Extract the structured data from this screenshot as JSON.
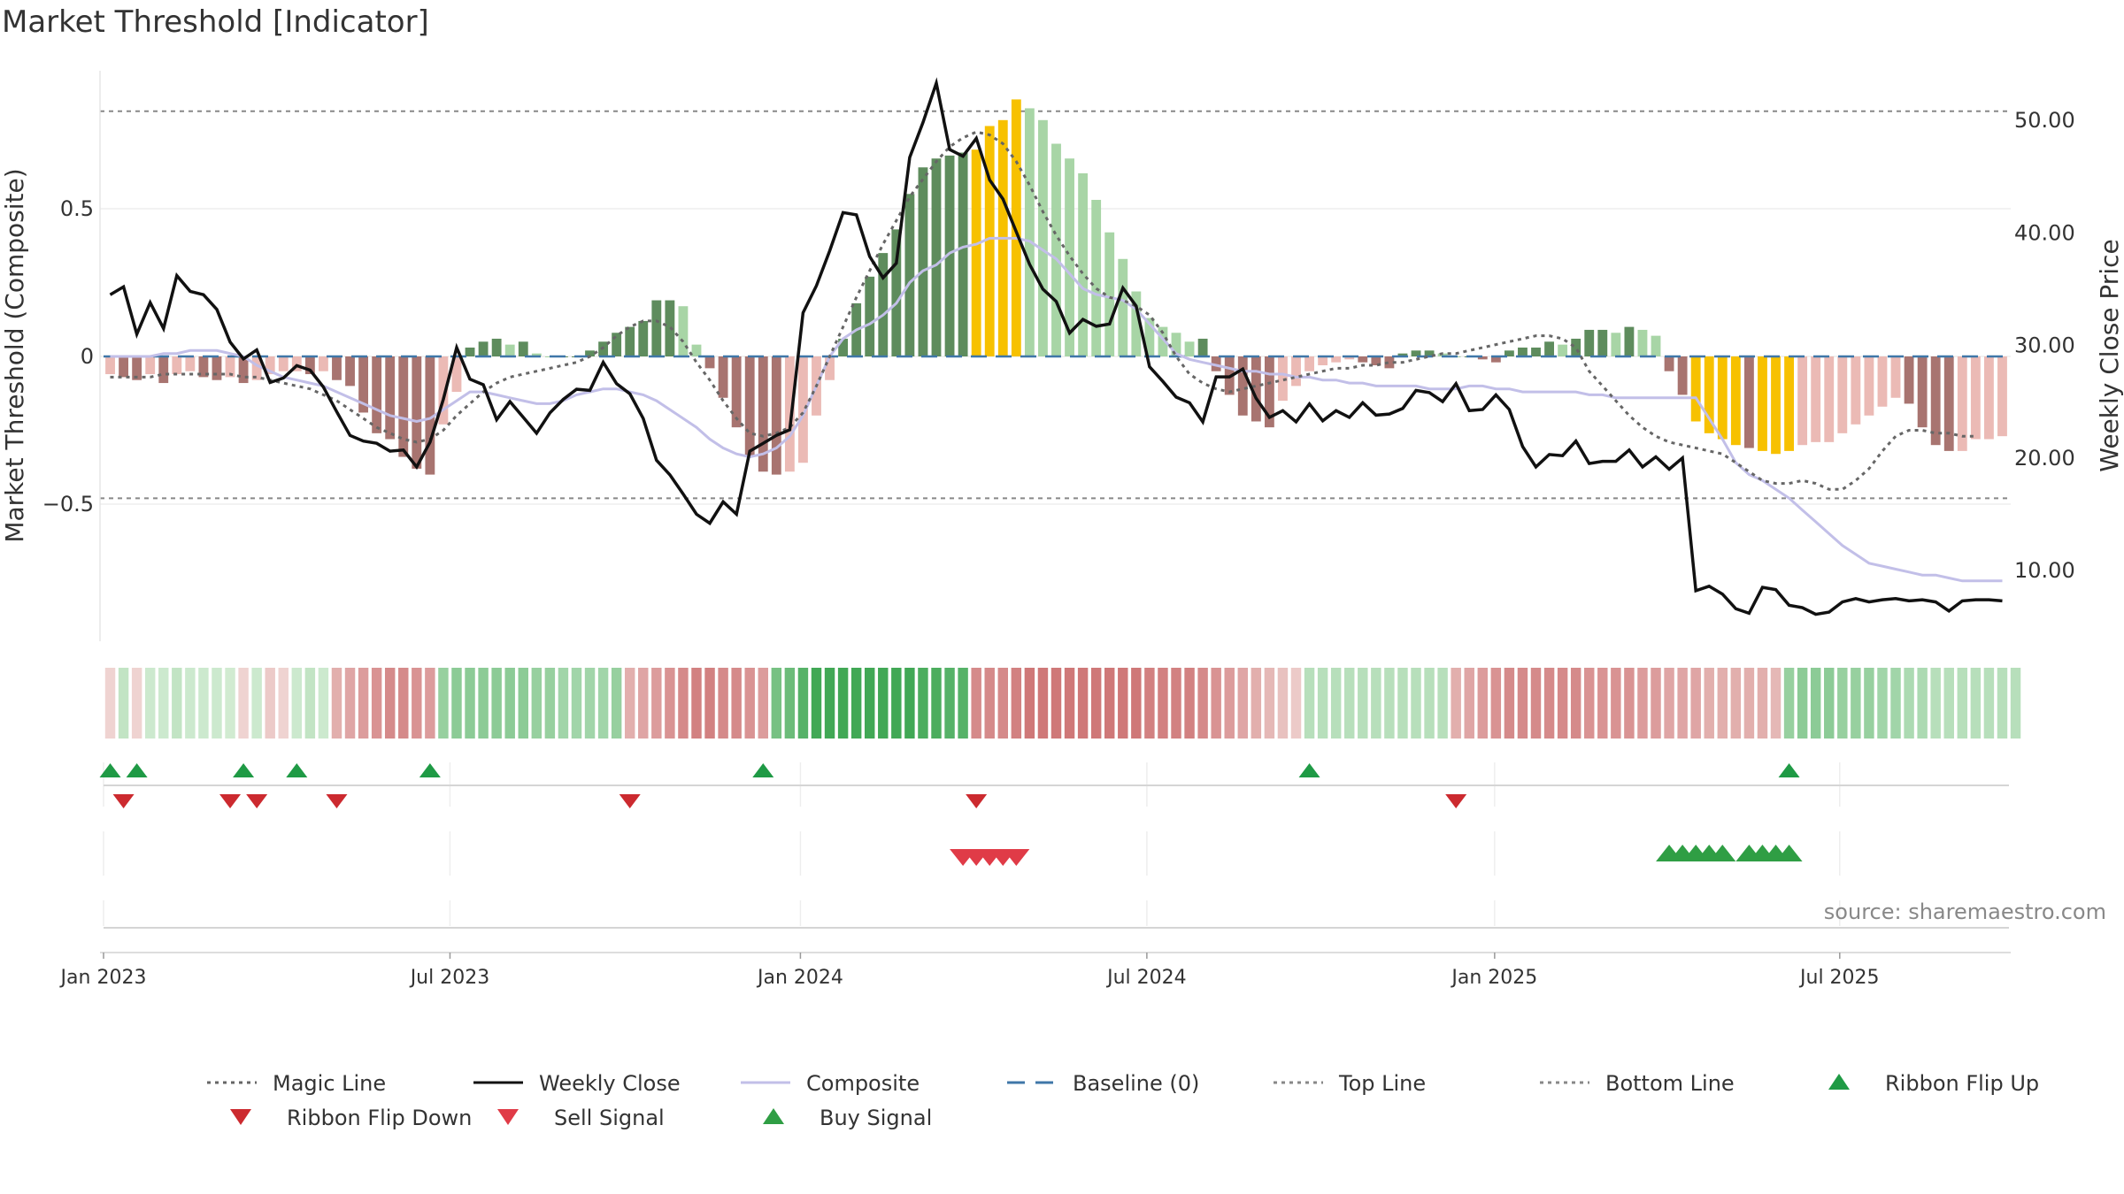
{
  "title": "Market Threshold [Indicator]",
  "source": "source: sharemaestro.com",
  "colors": {
    "dark_green": "#5e8c5d",
    "light_green": "#a8d5a6",
    "dark_red": "#a87470",
    "light_red": "#ebbab5",
    "gold": "#f7c100",
    "close": "#111111",
    "composite": "#c2bfe8",
    "magic": "#666666",
    "baseline": "#3f77a8",
    "buy": "#2f9e44",
    "sell": "#e03b47",
    "ribbon_up": "#1f9a45",
    "ribbon_down": "#cc2a2f"
  },
  "chart_data": {
    "type": "bar",
    "title": "Market Threshold [Indicator]",
    "ylabel_left": "Market Threshold (Composite)",
    "ylabel_right": "Weekly Close Price",
    "left_ticks": [
      "0.5",
      "0",
      "−0.5"
    ],
    "left_tick_values": [
      0.5,
      0,
      -0.5
    ],
    "right_ticks": [
      "50.00",
      "40.00",
      "30.00",
      "20.00",
      "10.00"
    ],
    "right_tick_values": [
      50,
      40,
      30,
      20,
      10
    ],
    "ylim_left": [
      -0.95,
      0.97
    ],
    "ylim_right": [
      4,
      56
    ],
    "top_line": 0.83,
    "bottom_line": -0.48,
    "x_ticks": [
      "Jan 2023",
      "Jul 2023",
      "Jan 2024",
      "Jul 2024",
      "Jan 2025",
      "Jul 2025"
    ],
    "x_tick_weeks": [
      0,
      26,
      52.3,
      78.3,
      104.4,
      130.3
    ],
    "x_start": "2022-12-25",
    "weeks": 143,
    "series": [
      {
        "name": "Composite",
        "role": "bars"
      },
      {
        "name": "Weekly Close",
        "role": "line"
      },
      {
        "name": "Magic Line",
        "role": "line"
      }
    ],
    "composite": [
      -0.06,
      -0.07,
      -0.08,
      -0.06,
      -0.09,
      -0.06,
      -0.05,
      -0.07,
      -0.08,
      -0.07,
      -0.09,
      -0.08,
      -0.06,
      -0.05,
      -0.05,
      -0.06,
      -0.05,
      -0.08,
      -0.1,
      -0.19,
      -0.26,
      -0.28,
      -0.34,
      -0.38,
      -0.4,
      -0.23,
      -0.12,
      0.03,
      0.05,
      0.06,
      0.04,
      0.05,
      0.01,
      0.0,
      0.0,
      0.0,
      0.02,
      0.05,
      0.08,
      0.1,
      0.12,
      0.19,
      0.19,
      0.17,
      0.04,
      -0.04,
      -0.14,
      -0.24,
      -0.34,
      -0.39,
      -0.4,
      -0.39,
      -0.36,
      -0.2,
      -0.08,
      0.06,
      0.18,
      0.27,
      0.35,
      0.43,
      0.55,
      0.64,
      0.67,
      0.68,
      0.69,
      0.7,
      0.78,
      0.8,
      0.87,
      0.84,
      0.8,
      0.72,
      0.67,
      0.62,
      0.53,
      0.42,
      0.33,
      0.22,
      0.13,
      0.1,
      0.08,
      0.05,
      0.06,
      -0.05,
      -0.13,
      -0.2,
      -0.22,
      -0.24,
      -0.15,
      -0.1,
      -0.05,
      -0.03,
      -0.02,
      -0.01,
      -0.02,
      -0.03,
      -0.04,
      0.01,
      0.02,
      0.02,
      0.01,
      0.0,
      0.0,
      -0.01,
      -0.02,
      0.02,
      0.03,
      0.03,
      0.05,
      0.04,
      0.06,
      0.09,
      0.09,
      0.08,
      0.1,
      0.09,
      0.07,
      -0.05,
      -0.13,
      -0.22,
      -0.26,
      -0.28,
      -0.3,
      -0.31,
      -0.32,
      -0.33,
      -0.32,
      -0.3,
      -0.29,
      -0.29,
      -0.26,
      -0.23,
      -0.2,
      -0.17,
      -0.14,
      -0.16,
      -0.24,
      -0.3,
      -0.32,
      -0.32,
      -0.28,
      -0.28,
      -0.27
    ],
    "weekly_close": [
      34.5,
      35.2,
      31.0,
      33.8,
      31.5,
      36.2,
      34.8,
      34.5,
      33.2,
      30.3,
      28.8,
      29.6,
      26.7,
      27.1,
      28.2,
      27.8,
      26.3,
      24.1,
      22.0,
      21.5,
      21.3,
      20.6,
      20.7,
      19.2,
      21.4,
      25.2,
      29.8,
      27.0,
      26.5,
      23.4,
      25.0,
      23.6,
      22.2,
      24.0,
      25.2,
      26.1,
      26.0,
      28.5,
      26.6,
      25.7,
      23.5,
      19.8,
      18.5,
      16.8,
      15.0,
      14.2,
      16.1,
      15.0,
      20.6,
      21.3,
      22.0,
      22.5,
      32.9,
      35.3,
      38.4,
      41.8,
      41.6,
      37.9,
      36.0,
      37.3,
      46.7,
      49.8,
      53.3,
      47.4,
      46.8,
      48.4,
      44.7,
      43.0,
      40.1,
      37.2,
      35.0,
      33.9,
      31.1,
      32.3,
      31.7,
      31.9,
      35.1,
      33.5,
      28.1,
      26.8,
      25.4,
      24.9,
      23.2,
      27.2,
      27.2,
      27.9,
      25.3,
      23.6,
      24.2,
      23.2,
      24.8,
      23.3,
      24.2,
      23.6,
      24.9,
      23.8,
      23.9,
      24.4,
      26.0,
      25.8,
      25.0,
      26.6,
      24.2,
      24.3,
      25.6,
      24.3,
      21.0,
      19.2,
      20.3,
      20.2,
      21.5,
      19.5,
      19.7,
      19.7,
      20.7,
      19.2,
      20.1,
      19.0,
      20.0,
      8.2,
      8.6,
      7.9,
      6.6,
      6.2,
      8.5,
      8.3,
      6.9,
      6.7,
      6.1,
      6.3,
      7.2,
      7.5,
      7.2,
      7.4,
      7.5,
      7.3,
      7.4,
      7.2,
      6.4,
      7.3,
      7.4,
      7.4,
      7.3
    ],
    "magic": [
      -0.07,
      -0.07,
      -0.07,
      -0.07,
      -0.06,
      -0.06,
      -0.06,
      -0.06,
      -0.06,
      -0.06,
      -0.07,
      -0.07,
      -0.08,
      -0.09,
      -0.1,
      -0.11,
      -0.13,
      -0.15,
      -0.18,
      -0.21,
      -0.24,
      -0.26,
      -0.28,
      -0.29,
      -0.28,
      -0.25,
      -0.2,
      -0.16,
      -0.12,
      -0.09,
      -0.07,
      -0.06,
      -0.05,
      -0.04,
      -0.03,
      -0.02,
      0.0,
      0.03,
      0.07,
      0.1,
      0.12,
      0.12,
      0.1,
      0.05,
      -0.02,
      -0.08,
      -0.15,
      -0.21,
      -0.26,
      -0.27,
      -0.26,
      -0.24,
      -0.19,
      -0.1,
      0.0,
      0.1,
      0.2,
      0.29,
      0.38,
      0.46,
      0.54,
      0.6,
      0.66,
      0.71,
      0.74,
      0.76,
      0.75,
      0.72,
      0.66,
      0.58,
      0.49,
      0.41,
      0.34,
      0.28,
      0.23,
      0.2,
      0.19,
      0.17,
      0.14,
      0.08,
      0.0,
      -0.06,
      -0.09,
      -0.11,
      -0.12,
      -0.11,
      -0.1,
      -0.09,
      -0.08,
      -0.07,
      -0.06,
      -0.05,
      -0.04,
      -0.04,
      -0.03,
      -0.03,
      -0.02,
      -0.02,
      -0.01,
      0.0,
      0.01,
      0.01,
      0.02,
      0.03,
      0.04,
      0.05,
      0.06,
      0.07,
      0.07,
      0.06,
      0.03,
      -0.05,
      -0.1,
      -0.15,
      -0.2,
      -0.24,
      -0.27,
      -0.29,
      -0.3,
      -0.31,
      -0.32,
      -0.33,
      -0.36,
      -0.39,
      -0.42,
      -0.43,
      -0.43,
      -0.42,
      -0.43,
      -0.45,
      -0.45,
      -0.42,
      -0.38,
      -0.32,
      -0.27,
      -0.25,
      -0.25,
      -0.26,
      -0.26,
      -0.27,
      -0.27
    ],
    "composite_line": [
      0.0,
      0.0,
      0.0,
      0.0,
      0.01,
      0.01,
      0.02,
      0.02,
      0.02,
      0.01,
      0.0,
      -0.03,
      -0.05,
      -0.07,
      -0.08,
      -0.09,
      -0.1,
      -0.12,
      -0.14,
      -0.16,
      -0.18,
      -0.2,
      -0.21,
      -0.22,
      -0.21,
      -0.18,
      -0.15,
      -0.12,
      -0.12,
      -0.13,
      -0.14,
      -0.15,
      -0.16,
      -0.16,
      -0.15,
      -0.13,
      -0.12,
      -0.11,
      -0.11,
      -0.12,
      -0.13,
      -0.15,
      -0.18,
      -0.21,
      -0.24,
      -0.28,
      -0.31,
      -0.33,
      -0.34,
      -0.33,
      -0.31,
      -0.27,
      -0.2,
      -0.1,
      0.0,
      0.06,
      0.09,
      0.11,
      0.14,
      0.18,
      0.25,
      0.29,
      0.31,
      0.35,
      0.37,
      0.38,
      0.4,
      0.4,
      0.4,
      0.39,
      0.36,
      0.33,
      0.28,
      0.23,
      0.21,
      0.2,
      0.19,
      0.16,
      0.11,
      0.06,
      0.01,
      -0.01,
      -0.02,
      -0.03,
      -0.04,
      -0.05,
      -0.05,
      -0.06,
      -0.06,
      -0.07,
      -0.07,
      -0.08,
      -0.08,
      -0.09,
      -0.09,
      -0.1,
      -0.1,
      -0.1,
      -0.1,
      -0.11,
      -0.11,
      -0.11,
      -0.1,
      -0.1,
      -0.11,
      -0.11,
      -0.12,
      -0.12,
      -0.12,
      -0.12,
      -0.12,
      -0.13,
      -0.13,
      -0.14,
      -0.14,
      -0.14,
      -0.14,
      -0.14,
      -0.14,
      -0.14,
      -0.21,
      -0.28,
      -0.36,
      -0.4,
      -0.42,
      -0.45,
      -0.48,
      -0.52,
      -0.56,
      -0.6,
      -0.64,
      -0.67,
      -0.7,
      -0.71,
      -0.72,
      -0.73,
      -0.74,
      -0.74,
      -0.75,
      -0.76,
      -0.76,
      -0.76,
      -0.76
    ],
    "gold_weeks": [
      65,
      66,
      67,
      68,
      119,
      120,
      121,
      122,
      124,
      125,
      126
    ],
    "buy_signal_weeks": [
      117,
      118,
      119,
      120,
      121,
      123,
      124,
      125,
      126
    ],
    "sell_signal_weeks": [
      64,
      65,
      66,
      67,
      68
    ],
    "ribbon_flip_up_weeks": [
      0,
      2,
      10,
      14,
      24,
      49,
      90,
      126
    ],
    "ribbon_flip_down_weeks": [
      1,
      9,
      11,
      17,
      39,
      65,
      101
    ],
    "ribbon_levels": [
      -0.3,
      0.35,
      -0.3,
      0.3,
      0.3,
      0.35,
      0.3,
      0.3,
      0.3,
      0.28,
      -0.3,
      0.3,
      -0.35,
      -0.3,
      0.3,
      0.35,
      0.3,
      -0.5,
      -0.55,
      -0.6,
      -0.65,
      -0.7,
      -0.7,
      -0.65,
      -0.6,
      0.55,
      0.6,
      0.6,
      0.6,
      0.6,
      0.6,
      0.6,
      0.55,
      0.55,
      0.5,
      0.5,
      0.5,
      0.5,
      0.55,
      -0.5,
      -0.55,
      -0.6,
      -0.65,
      -0.7,
      -0.75,
      -0.75,
      -0.7,
      -0.7,
      -0.65,
      -0.6,
      0.7,
      0.75,
      0.85,
      0.95,
      0.95,
      0.95,
      0.95,
      0.95,
      0.95,
      0.95,
      0.95,
      0.9,
      0.9,
      0.85,
      0.85,
      -0.7,
      -0.7,
      -0.7,
      -0.75,
      -0.8,
      -0.8,
      -0.8,
      -0.8,
      -0.8,
      -0.8,
      -0.8,
      -0.8,
      -0.8,
      -0.75,
      -0.75,
      -0.75,
      -0.75,
      -0.7,
      -0.65,
      -0.6,
      -0.55,
      -0.5,
      -0.45,
      -0.4,
      -0.35,
      0.4,
      0.4,
      0.4,
      0.4,
      0.4,
      0.4,
      0.4,
      0.4,
      0.4,
      0.4,
      0.4,
      -0.5,
      -0.55,
      -0.6,
      -0.65,
      -0.7,
      -0.7,
      -0.7,
      -0.7,
      -0.7,
      -0.7,
      -0.65,
      -0.65,
      -0.65,
      -0.65,
      -0.6,
      -0.6,
      -0.55,
      -0.55,
      -0.55,
      -0.5,
      -0.5,
      -0.5,
      -0.5,
      -0.5,
      -0.45,
      0.55,
      0.6,
      0.6,
      0.6,
      0.55,
      0.55,
      0.55,
      0.5,
      0.5,
      0.45,
      0.45,
      0.4,
      0.4,
      0.4,
      0.4,
      0.4,
      0.4,
      0.4
    ]
  },
  "legend": [
    {
      "label": "Magic Line",
      "kind": "dotted",
      "color": "#666666"
    },
    {
      "label": "Weekly Close",
      "kind": "solid",
      "color": "#111111"
    },
    {
      "label": "Composite",
      "kind": "solid",
      "color": "#c2bfe8"
    },
    {
      "label": "Baseline (0)",
      "kind": "dashed",
      "color": "#3f77a8"
    },
    {
      "label": "Top Line",
      "kind": "dotted",
      "color": "#888888"
    },
    {
      "label": "Bottom Line",
      "kind": "dotted",
      "color": "#888888"
    },
    {
      "label": "Ribbon Flip Up",
      "kind": "tri-up",
      "color": "#1f9a45"
    },
    {
      "label": "Ribbon Flip Down",
      "kind": "tri-down",
      "color": "#cc2a2f"
    },
    {
      "label": "Sell Signal",
      "kind": "tri-down",
      "color": "#e03b47"
    },
    {
      "label": "Buy Signal",
      "kind": "tri-up",
      "color": "#2f9e44"
    }
  ]
}
